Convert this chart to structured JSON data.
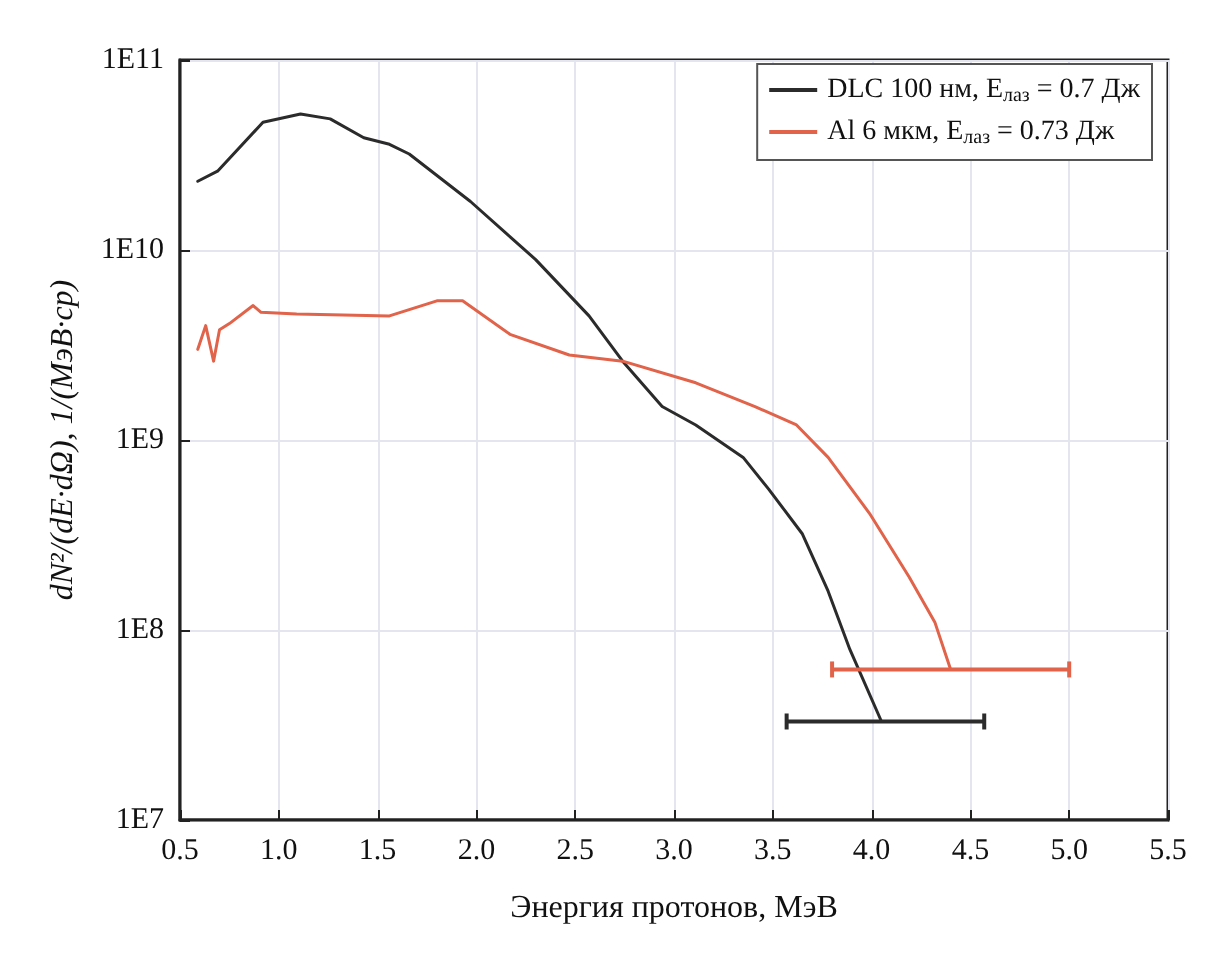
{
  "chart_data": {
    "type": "line",
    "xlabel": "Энергия протонов, МэВ",
    "ylabel": "dN²/(dE·dΩ), 1/(МэВ·ср)",
    "series": [
      {
        "name": "DLC 100 нм, E$_{лаз}$ = 0.7 Дж",
        "color": "#2b2b2b",
        "x": [
          0.59,
          0.69,
          0.92,
          1.11,
          1.26,
          1.43,
          1.56,
          1.66,
          1.97,
          2.3,
          2.57,
          2.74,
          2.94,
          3.11,
          3.35,
          3.48,
          3.65,
          3.78,
          3.89,
          4.05
        ],
        "values": [
          23000000000.0,
          26000000000.0,
          47000000000.0,
          52000000000.0,
          49000000000.0,
          39000000000.0,
          36000000000.0,
          32000000000.0,
          18000000000.0,
          8900000000.0,
          4500000000.0,
          2600000000.0,
          1500000000.0,
          1200000000.0,
          810000000.0,
          550000000.0,
          320000000.0,
          160000000.0,
          79000000.0,
          33000000.0
        ],
        "xerrors": [
          null,
          null,
          null,
          null,
          null,
          null,
          null,
          null,
          null,
          null,
          null,
          null,
          null,
          null,
          null,
          null,
          null,
          null,
          null,
          [
            3.57,
            4.57
          ]
        ]
      },
      {
        "name": "Al 6 мкм, E$_{лаз}$ = 0.73 Дж",
        "color": "#e0634a",
        "x": [
          0.59,
          0.63,
          0.67,
          0.7,
          0.75,
          0.87,
          0.91,
          1.09,
          1.56,
          1.8,
          1.93,
          2.17,
          2.47,
          2.74,
          3.11,
          3.41,
          3.62,
          3.78,
          3.99,
          4.19,
          4.32,
          4.4
        ],
        "values": [
          3000000000.0,
          4000000000.0,
          2600000000.0,
          3800000000.0,
          4100000000.0,
          5100000000.0,
          4700000000.0,
          4600000000.0,
          4500000000.0,
          5400000000.0,
          5400000000.0,
          3600000000.0,
          2800000000.0,
          2600000000.0,
          2000000000.0,
          1500000000.0,
          1200000000.0,
          810000000.0,
          410000000.0,
          190000000.0,
          110000000.0,
          62000000.0
        ],
        "xerrors": [
          null,
          null,
          null,
          null,
          null,
          null,
          null,
          null,
          null,
          null,
          null,
          null,
          null,
          null,
          null,
          null,
          null,
          null,
          null,
          null,
          null,
          [
            3.8,
            5.0
          ]
        ]
      }
    ],
    "xlim": [
      0.5,
      5.5
    ],
    "xticks": [
      {
        "value": 0.5,
        "label": "0.5"
      },
      {
        "value": 1,
        "label": "1.0"
      },
      {
        "value": 1.5,
        "label": "1.5"
      },
      {
        "value": 2,
        "label": "2.0"
      },
      {
        "value": 2.5,
        "label": "2.5"
      },
      {
        "value": 3,
        "label": "3.0"
      },
      {
        "value": 3.5,
        "label": "3.5"
      },
      {
        "value": 4,
        "label": "4.0"
      },
      {
        "value": 4.5,
        "label": "4.5"
      },
      {
        "value": 5,
        "label": "5.0"
      },
      {
        "value": 5.5,
        "label": "5.5"
      }
    ],
    "ylim": [
      10000000.0,
      100000000000.0
    ],
    "yticks": [
      {
        "value": 10000000.0,
        "label": "1E7"
      },
      {
        "value": 100000000.0,
        "label": "1E8"
      },
      {
        "value": 1000000000.0,
        "label": "1E9"
      },
      {
        "value": 10000000000.0,
        "label": "1E10"
      },
      {
        "value": 100000000000.0,
        "label": "1E11"
      }
    ],
    "log": "y",
    "grid": true,
    "legend": "top right",
    "marker": "none",
    "line_style": "solid"
  }
}
